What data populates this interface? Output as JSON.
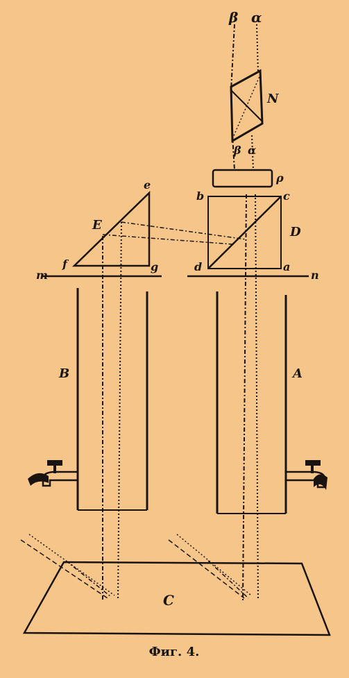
{
  "figure": {
    "caption": "Фиг. 4.",
    "labels": {
      "beta_top": "β",
      "alpha_top": "α",
      "nicol": "N",
      "beta_mid": "β",
      "alpha_mid": "α",
      "rho": "ρ",
      "b": "b",
      "c": "c",
      "D": "D",
      "d": "d",
      "a": "a",
      "e": "e",
      "E": "E",
      "f": "f",
      "g": "g",
      "m": "m",
      "n": "n",
      "B": "B",
      "A": "A",
      "C": "C"
    }
  },
  "colors": {
    "paper": "#f5c58a",
    "ink": "#1a1410"
  }
}
